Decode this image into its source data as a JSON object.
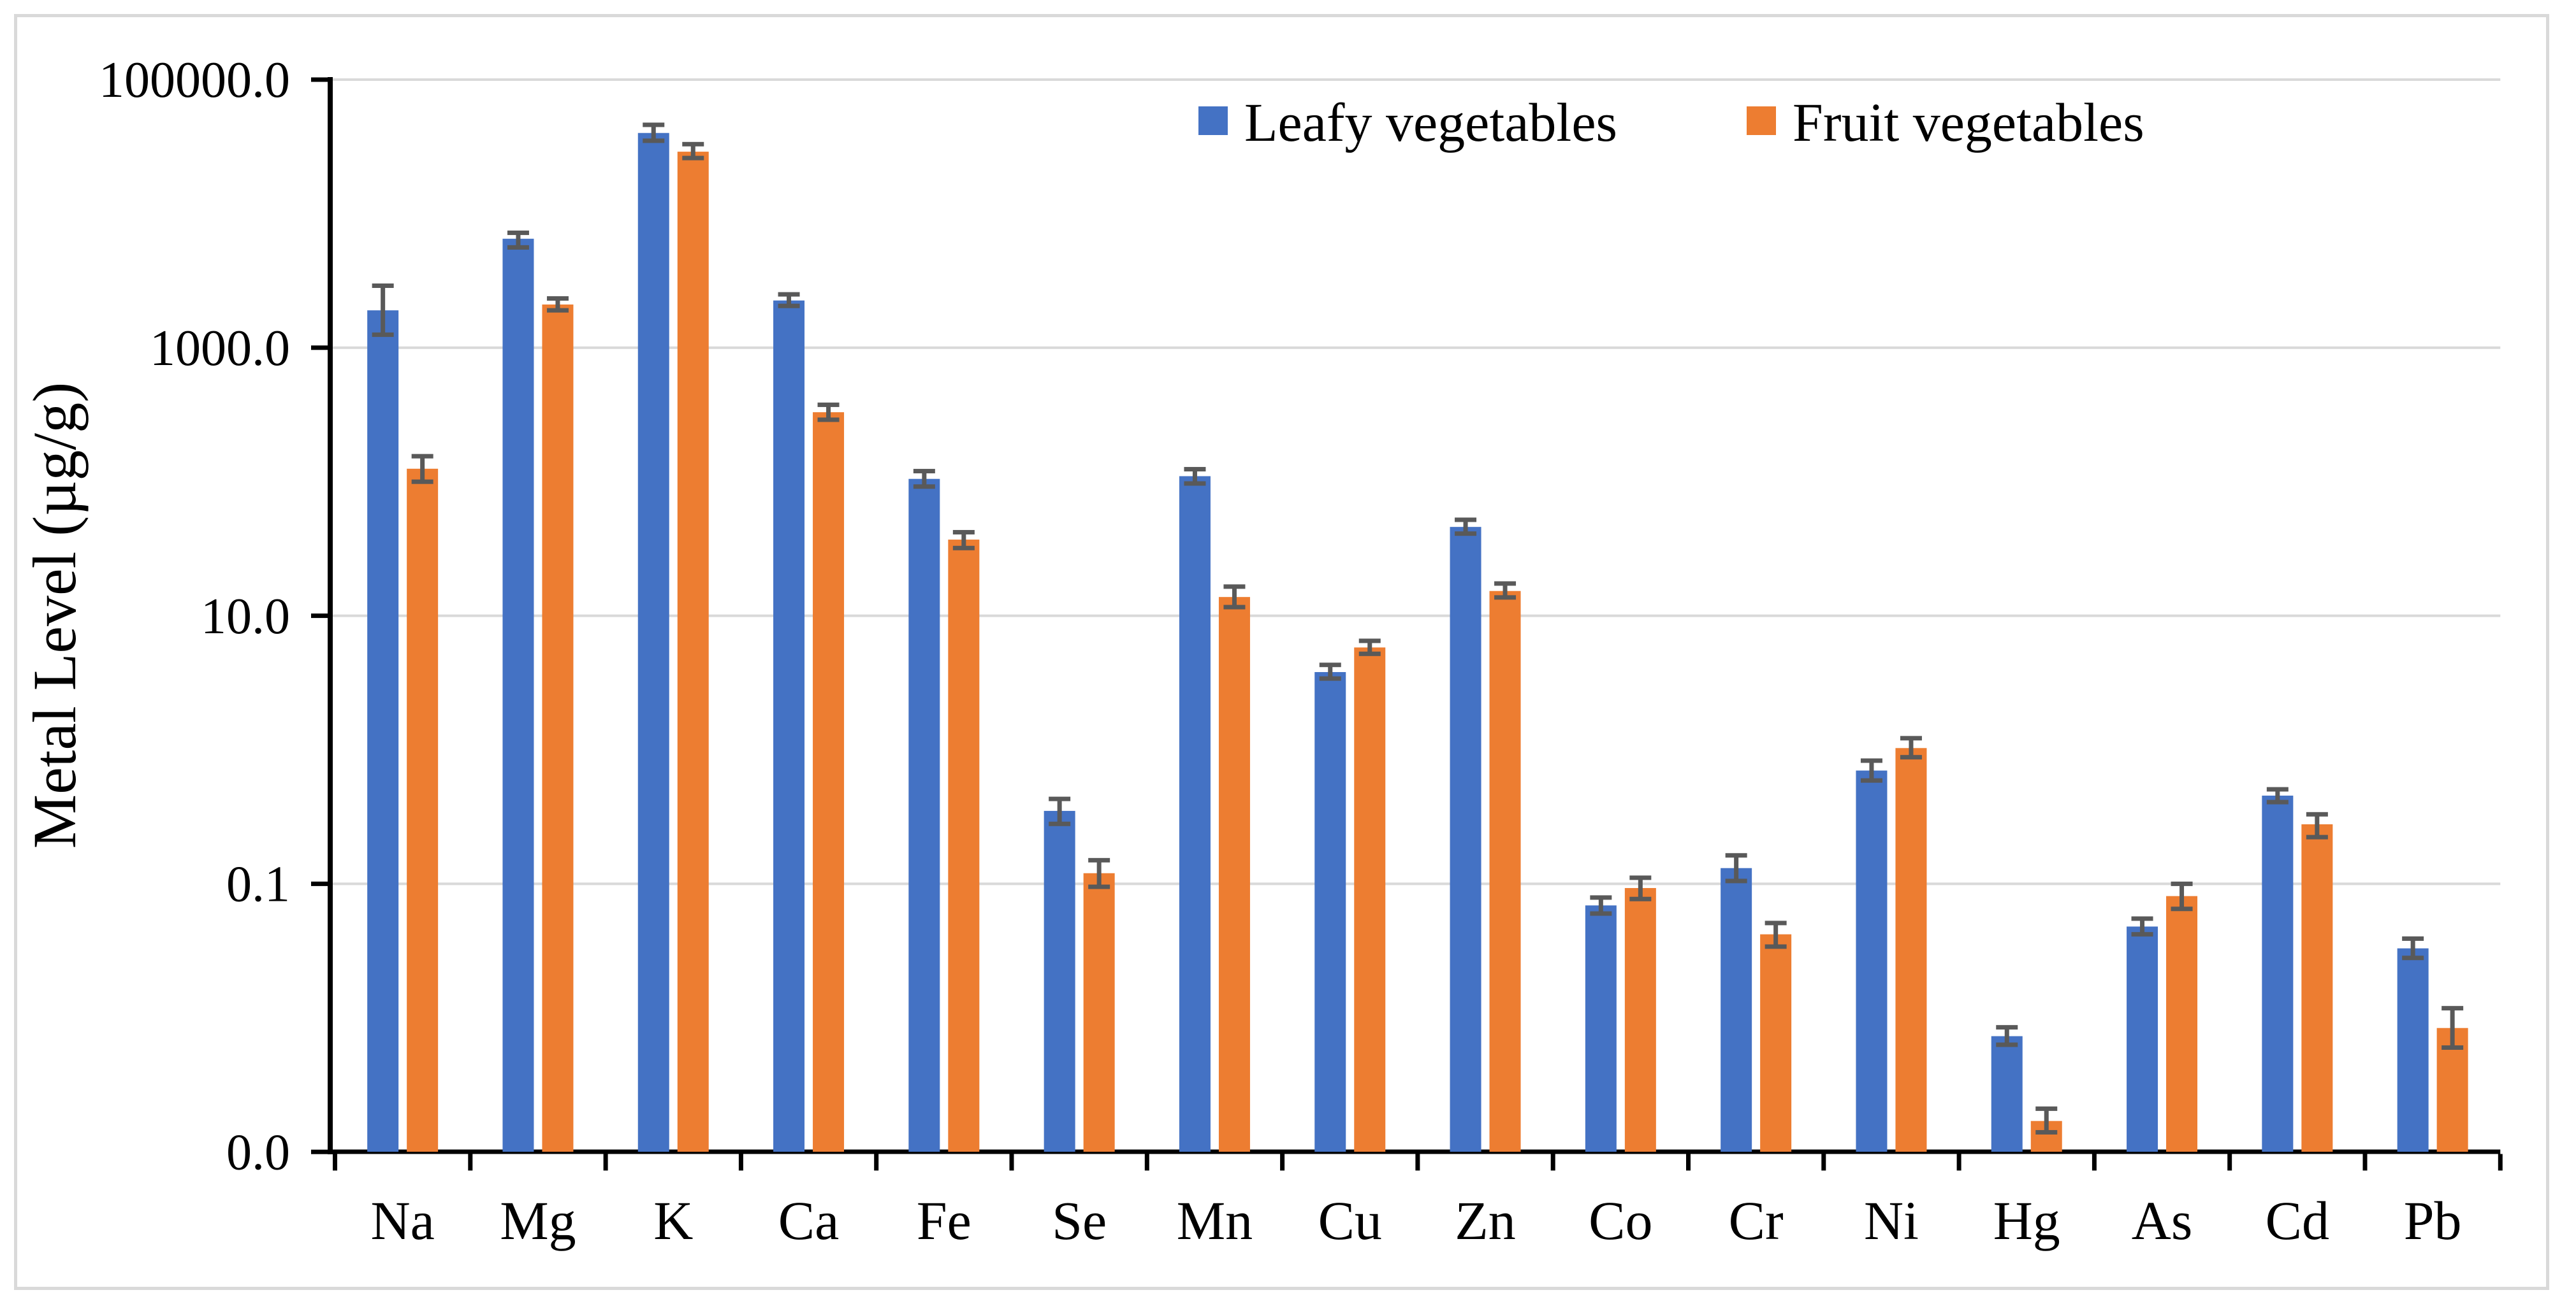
{
  "chart_data": {
    "type": "bar",
    "title": "",
    "xlabel": "",
    "ylabel": "Metal Level (µg/g)",
    "scale": "log",
    "ylim": [
      0.001,
      100000
    ],
    "grid": true,
    "legend_position": "top-center",
    "ytick_labels": [
      "100000.0",
      "1000.0",
      "10.0",
      "0.1",
      "0.0"
    ],
    "ytick_values": [
      100000,
      1000,
      10,
      0.1,
      0.001
    ],
    "categories": [
      "Na",
      "Mg",
      "K",
      "Ca",
      "Fe",
      "Se",
      "Mn",
      "Cu",
      "Zn",
      "Co",
      "Cr",
      "Ni",
      "Hg",
      "As",
      "Cd",
      "Pb"
    ],
    "series": [
      {
        "key": "leafy",
        "name": "Leafy vegetables",
        "color": "#4472C4",
        "values": [
          1900,
          6500,
          40000,
          2250,
          105,
          0.35,
          110,
          3.8,
          46,
          0.069,
          0.131,
          0.7,
          0.0073,
          0.048,
          0.455,
          0.033
        ],
        "err_lo": [
          1250,
          5600,
          35000,
          2050,
          92,
          0.28,
          97,
          3.4,
          41,
          0.06,
          0.105,
          0.59,
          0.0063,
          0.042,
          0.407,
          0.028
        ],
        "err_hi": [
          2900,
          7200,
          46000,
          2500,
          120,
          0.43,
          124,
          4.3,
          52,
          0.079,
          0.163,
          0.83,
          0.0085,
          0.055,
          0.507,
          0.039
        ]
      },
      {
        "key": "fruit",
        "name": "Fruit vegetables",
        "color": "#ED7D31",
        "values": [
          125,
          2100,
          29000,
          330,
          37,
          0.12,
          13.8,
          5.8,
          15.3,
          0.093,
          0.042,
          1.03,
          0.0017,
          0.081,
          0.278,
          0.0084
        ],
        "err_lo": [
          100,
          1900,
          26000,
          290,
          32,
          0.095,
          11.6,
          5.2,
          13.7,
          0.077,
          0.034,
          0.88,
          0.0014,
          0.065,
          0.223,
          0.006
        ],
        "err_hi": [
          155,
          2330,
          33000,
          375,
          42,
          0.15,
          16.5,
          6.5,
          17.4,
          0.111,
          0.051,
          1.22,
          0.0021,
          0.1,
          0.33,
          0.0118
        ]
      }
    ],
    "colors": {
      "leafy_bar": "#4472C4",
      "fruit_bar": "#ED7D31",
      "error_bar": "#595959",
      "gridline": "#D9D9D9",
      "axis": "#000000",
      "text": "#000000",
      "chart_border": "#D9D9D9"
    }
  }
}
